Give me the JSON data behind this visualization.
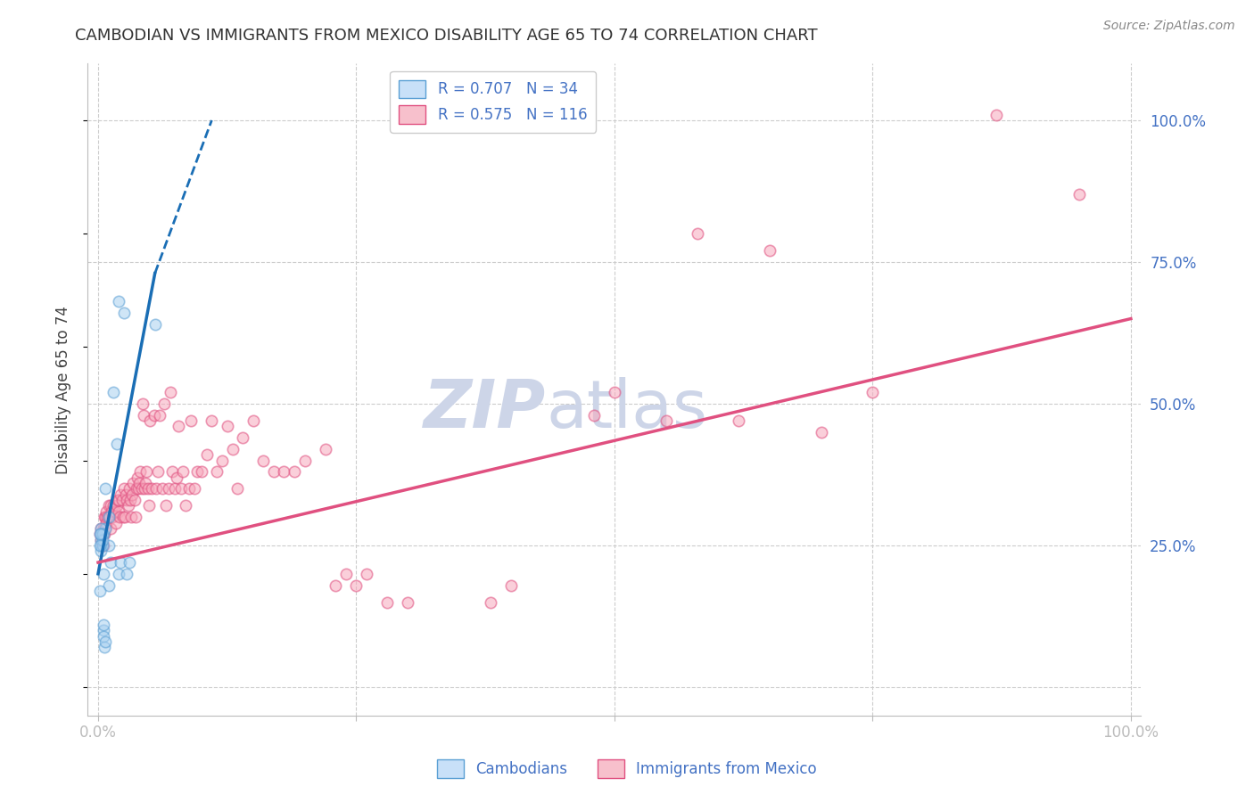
{
  "title": "CAMBODIAN VS IMMIGRANTS FROM MEXICO DISABILITY AGE 65 TO 74 CORRELATION CHART",
  "source": "Source: ZipAtlas.com",
  "ylabel": "Disability Age 65 to 74",
  "legend_entries": [
    {
      "label": "R = 0.707   N = 34",
      "color": "#6baed6"
    },
    {
      "label": "R = 0.575   N = 116",
      "color": "#f768a1"
    }
  ],
  "cambodian_scatter": [
    [
      0.5,
      20.0
    ],
    [
      0.5,
      27.0
    ],
    [
      0.7,
      35.0
    ],
    [
      0.7,
      28.0
    ],
    [
      1.0,
      25.0
    ],
    [
      1.0,
      30.0
    ],
    [
      1.0,
      18.0
    ],
    [
      1.2,
      22.0
    ],
    [
      1.5,
      52.0
    ],
    [
      1.8,
      43.0
    ],
    [
      2.0,
      68.0
    ],
    [
      2.0,
      20.0
    ],
    [
      2.2,
      22.0
    ],
    [
      2.5,
      66.0
    ],
    [
      2.8,
      20.0
    ],
    [
      3.0,
      22.0
    ],
    [
      0.3,
      27.0
    ],
    [
      0.3,
      28.0
    ],
    [
      0.3,
      25.0
    ],
    [
      0.3,
      26.0
    ],
    [
      0.3,
      24.0
    ],
    [
      0.3,
      27.0
    ],
    [
      0.4,
      25.0
    ],
    [
      0.4,
      26.0
    ],
    [
      0.4,
      27.0
    ],
    [
      0.5,
      10.0
    ],
    [
      0.5,
      9.0
    ],
    [
      0.5,
      11.0
    ],
    [
      0.6,
      7.0
    ],
    [
      0.7,
      8.0
    ],
    [
      0.2,
      27.0
    ],
    [
      0.2,
      25.0
    ],
    [
      5.5,
      64.0
    ],
    [
      0.2,
      17.0
    ]
  ],
  "mexico_scatter": [
    [
      0.2,
      27.0
    ],
    [
      0.3,
      26.0
    ],
    [
      0.3,
      28.0
    ],
    [
      0.4,
      25.0
    ],
    [
      0.4,
      27.0
    ],
    [
      0.5,
      25.0
    ],
    [
      0.5,
      27.0
    ],
    [
      0.5,
      28.0
    ],
    [
      0.6,
      27.0
    ],
    [
      0.6,
      30.0
    ],
    [
      0.7,
      28.0
    ],
    [
      0.7,
      30.0
    ],
    [
      0.8,
      29.0
    ],
    [
      0.8,
      31.0
    ],
    [
      0.9,
      30.0
    ],
    [
      1.0,
      30.0
    ],
    [
      1.0,
      32.0
    ],
    [
      1.1,
      30.0
    ],
    [
      1.2,
      28.0
    ],
    [
      1.2,
      32.0
    ],
    [
      1.3,
      31.0
    ],
    [
      1.4,
      30.0
    ],
    [
      1.5,
      32.0
    ],
    [
      1.6,
      31.0
    ],
    [
      1.7,
      29.0
    ],
    [
      1.8,
      32.0
    ],
    [
      1.9,
      33.0
    ],
    [
      2.0,
      31.0
    ],
    [
      2.0,
      33.0
    ],
    [
      2.1,
      30.0
    ],
    [
      2.2,
      34.0
    ],
    [
      2.3,
      33.0
    ],
    [
      2.4,
      30.0
    ],
    [
      2.5,
      35.0
    ],
    [
      2.6,
      30.0
    ],
    [
      2.7,
      34.0
    ],
    [
      2.8,
      33.0
    ],
    [
      2.9,
      32.0
    ],
    [
      3.0,
      35.0
    ],
    [
      3.1,
      33.0
    ],
    [
      3.2,
      30.0
    ],
    [
      3.3,
      34.0
    ],
    [
      3.4,
      36.0
    ],
    [
      3.5,
      33.0
    ],
    [
      3.6,
      30.0
    ],
    [
      3.7,
      35.0
    ],
    [
      3.8,
      37.0
    ],
    [
      3.9,
      35.0
    ],
    [
      4.0,
      36.0
    ],
    [
      4.1,
      38.0
    ],
    [
      4.2,
      35.0
    ],
    [
      4.3,
      50.0
    ],
    [
      4.4,
      48.0
    ],
    [
      4.5,
      35.0
    ],
    [
      4.6,
      36.0
    ],
    [
      4.7,
      38.0
    ],
    [
      4.8,
      35.0
    ],
    [
      4.9,
      32.0
    ],
    [
      5.0,
      47.0
    ],
    [
      5.2,
      35.0
    ],
    [
      5.4,
      48.0
    ],
    [
      5.6,
      35.0
    ],
    [
      5.8,
      38.0
    ],
    [
      6.0,
      48.0
    ],
    [
      6.2,
      35.0
    ],
    [
      6.4,
      50.0
    ],
    [
      6.6,
      32.0
    ],
    [
      6.8,
      35.0
    ],
    [
      7.0,
      52.0
    ],
    [
      7.2,
      38.0
    ],
    [
      7.4,
      35.0
    ],
    [
      7.6,
      37.0
    ],
    [
      7.8,
      46.0
    ],
    [
      8.0,
      35.0
    ],
    [
      8.2,
      38.0
    ],
    [
      8.5,
      32.0
    ],
    [
      8.8,
      35.0
    ],
    [
      9.0,
      47.0
    ],
    [
      9.3,
      35.0
    ],
    [
      9.6,
      38.0
    ],
    [
      10.0,
      38.0
    ],
    [
      10.5,
      41.0
    ],
    [
      11.0,
      47.0
    ],
    [
      11.5,
      38.0
    ],
    [
      12.0,
      40.0
    ],
    [
      12.5,
      46.0
    ],
    [
      13.0,
      42.0
    ],
    [
      13.5,
      35.0
    ],
    [
      14.0,
      44.0
    ],
    [
      15.0,
      47.0
    ],
    [
      16.0,
      40.0
    ],
    [
      17.0,
      38.0
    ],
    [
      18.0,
      38.0
    ],
    [
      19.0,
      38.0
    ],
    [
      20.0,
      40.0
    ],
    [
      22.0,
      42.0
    ],
    [
      23.0,
      18.0
    ],
    [
      24.0,
      20.0
    ],
    [
      25.0,
      18.0
    ],
    [
      26.0,
      20.0
    ],
    [
      28.0,
      15.0
    ],
    [
      30.0,
      15.0
    ],
    [
      38.0,
      15.0
    ],
    [
      40.0,
      18.0
    ],
    [
      48.0,
      48.0
    ],
    [
      50.0,
      52.0
    ],
    [
      55.0,
      47.0
    ],
    [
      58.0,
      80.0
    ],
    [
      62.0,
      47.0
    ],
    [
      65.0,
      77.0
    ],
    [
      70.0,
      45.0
    ],
    [
      75.0,
      52.0
    ],
    [
      87.0,
      101.0
    ],
    [
      95.0,
      87.0
    ]
  ],
  "cambodian_line": {
    "x": [
      0.0,
      5.5
    ],
    "y": [
      20.0,
      73.0
    ]
  },
  "cambodian_line_dashed": {
    "x": [
      5.5,
      11.0
    ],
    "y": [
      73.0,
      100.0
    ]
  },
  "mexico_line": {
    "x": [
      0.0,
      100.0
    ],
    "y": [
      22.0,
      65.0
    ]
  },
  "xlim": [
    -1.0,
    101.0
  ],
  "ylim": [
    -5.0,
    110.0
  ],
  "scatter_alpha": 0.55,
  "scatter_size": 80,
  "scatter_linewidth": 1.2,
  "cambodian_color": "#a8d0f0",
  "cambodian_edge": "#5a9fd4",
  "mexico_color": "#f7a8bc",
  "mexico_edge": "#e05080",
  "cambodian_line_color": "#1a6eb5",
  "mexico_line_color": "#e05080",
  "bg_color": "#ffffff",
  "grid_color": "#cccccc",
  "title_color": "#333333",
  "axis_label_color": "#4472c4",
  "watermark_zip_color": "#cdd5e8",
  "watermark_atlas_color": "#cdd5e8"
}
